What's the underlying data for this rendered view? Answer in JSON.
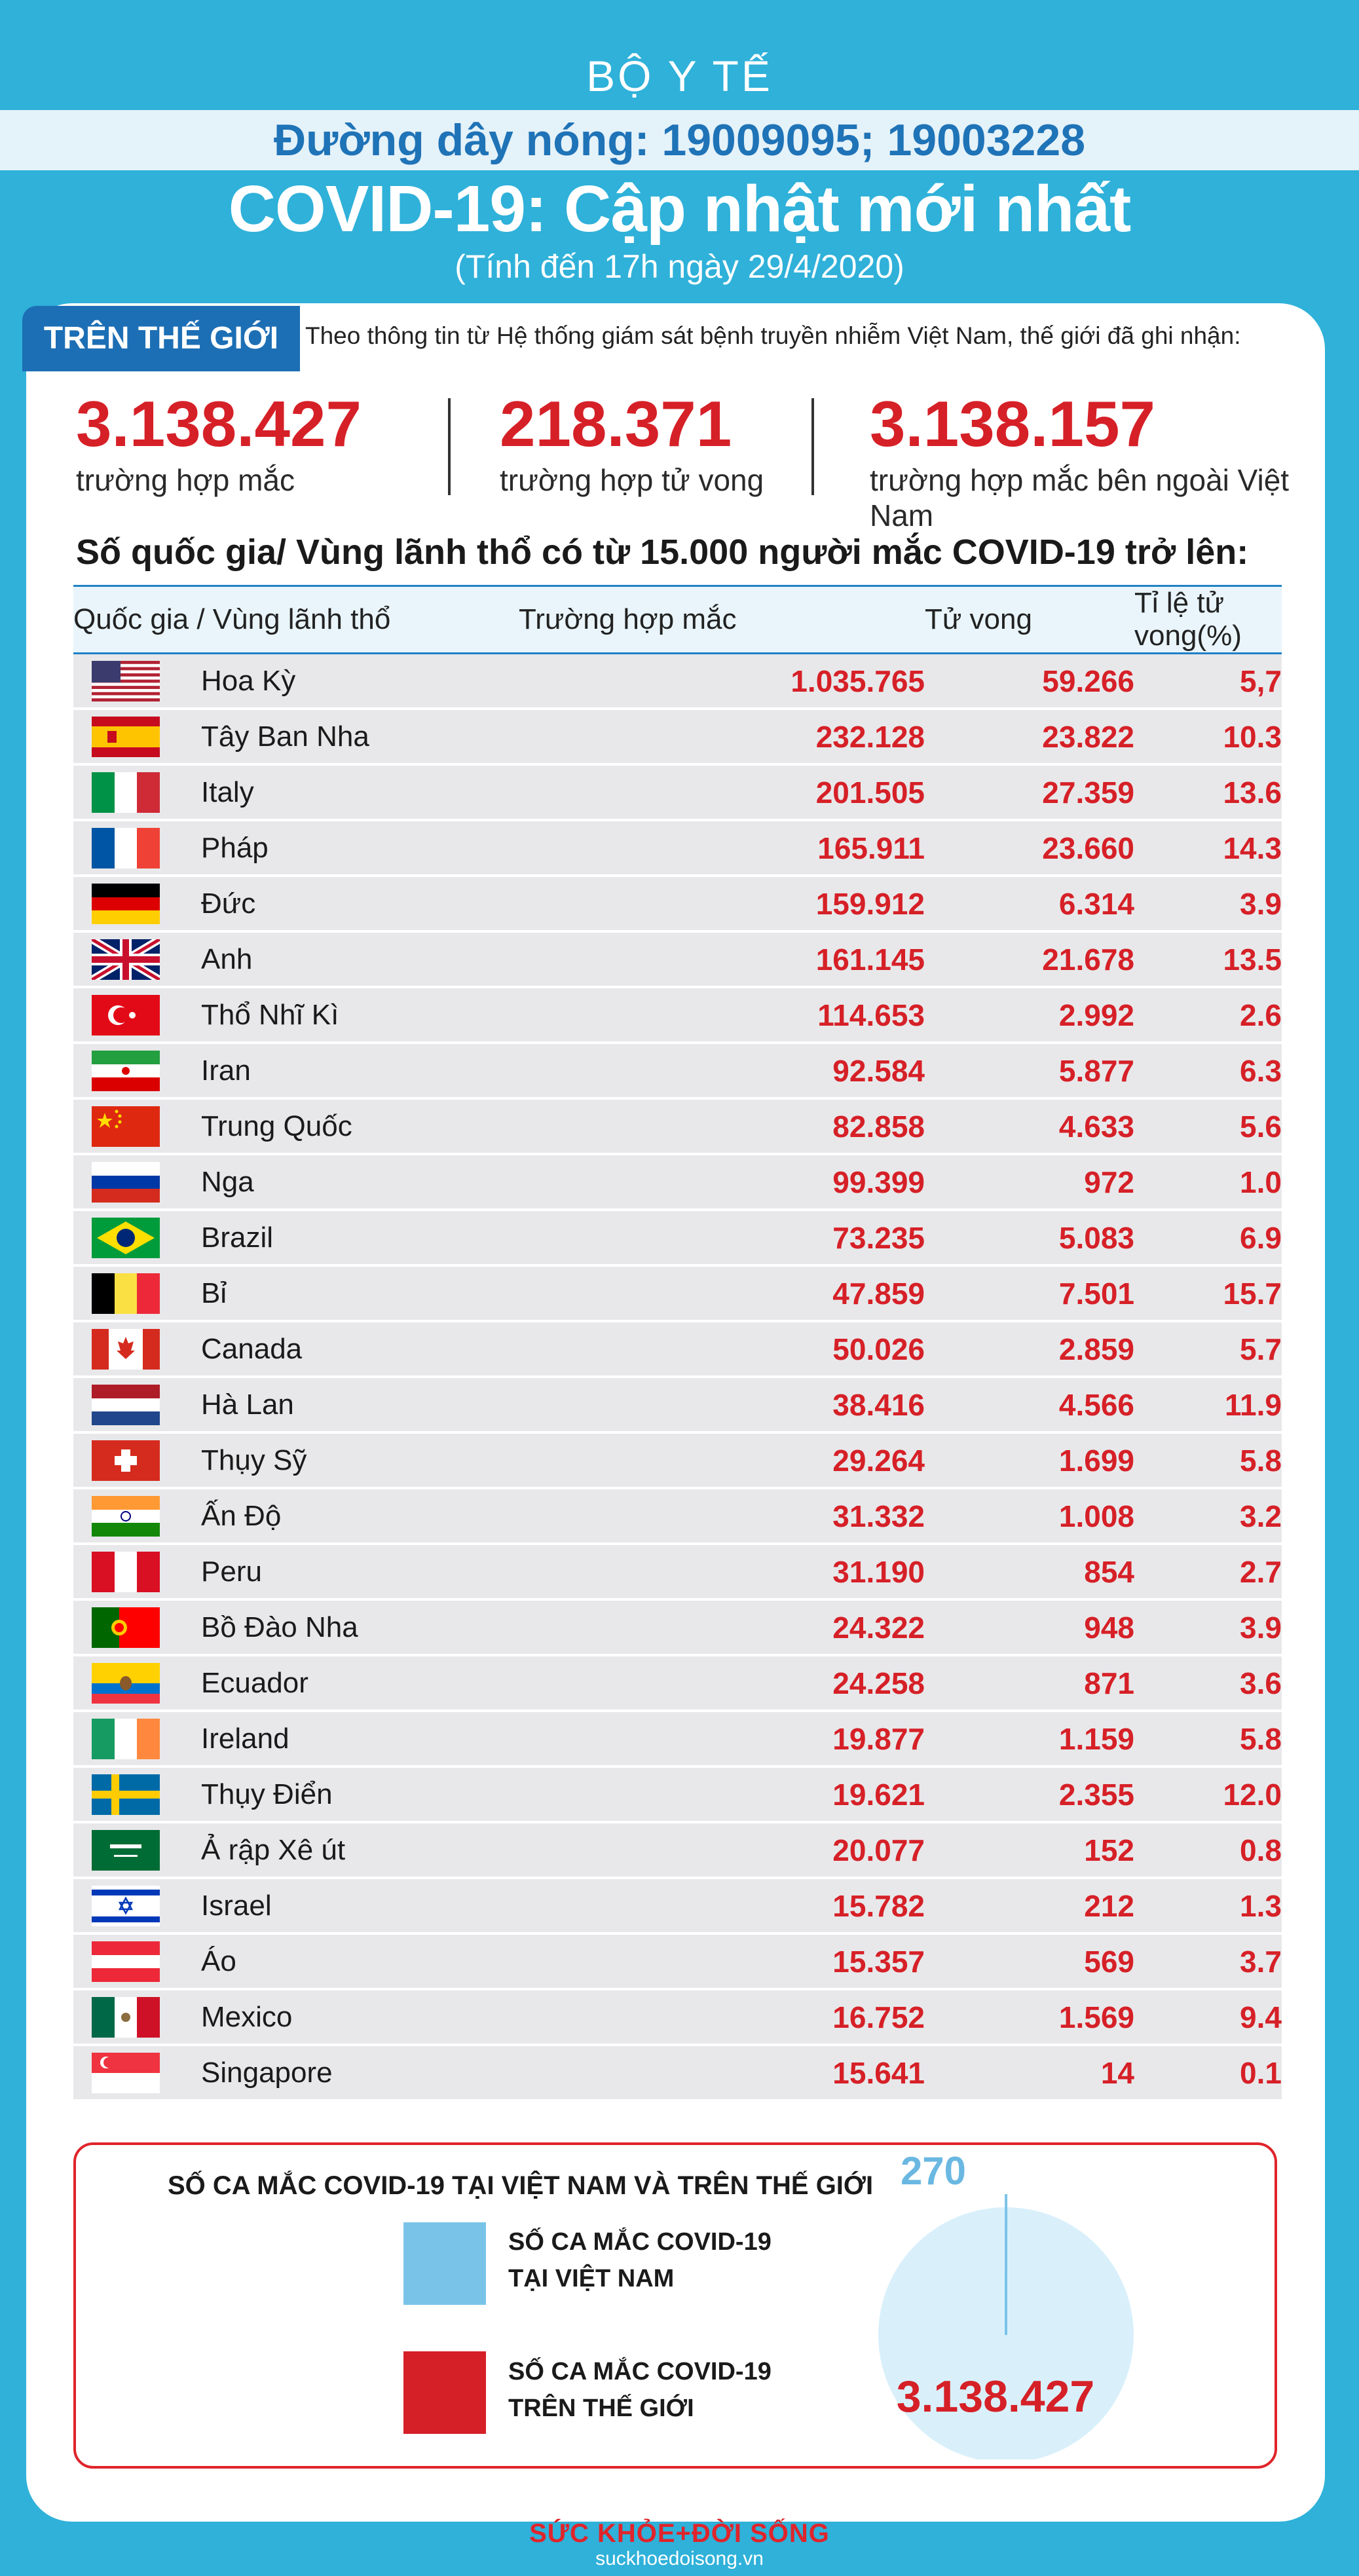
{
  "header": {
    "ministry": "BỘ Y TẾ",
    "hotline": "Đường dây nóng: 19009095; 19003228",
    "title": "COVID-19: Cập nhật mới nhất",
    "subtitle": "(Tính đến 17h ngày 29/4/2020)"
  },
  "world": {
    "tag": "TRÊN THẾ GIỚI",
    "intro": "Theo thông tin từ Hệ thống giám sát bệnh truyền nhiễm Việt Nam, thế giới đã ghi nhận:",
    "stats": [
      {
        "value": "3.138.427",
        "label": "trường hợp mắc"
      },
      {
        "value": "218.371",
        "label": "trường hợp tử vong"
      },
      {
        "value": "3.138.157",
        "label": "trường hợp  mắc bên ngoài Việt Nam"
      }
    ]
  },
  "table": {
    "title": "Số quốc gia/ Vùng lãnh thổ có từ 15.000 người  mắc COVID-19 trở lên:",
    "headers": {
      "country": "Quốc gia / Vùng lãnh thổ",
      "cases": "Trường hợp mắc",
      "deaths": "Tử vong",
      "rate": "Tỉ lệ tử vong(%)"
    },
    "rows": [
      {
        "flag": "usa-flag-icon",
        "name": "Hoa Kỳ",
        "cases": "1.035.765",
        "deaths": "59.266",
        "rate": "5,7"
      },
      {
        "flag": "spain-flag-icon",
        "name": "Tây Ban Nha",
        "cases": "232.128",
        "deaths": "23.822",
        "rate": "10.3"
      },
      {
        "flag": "italy-flag-icon",
        "name": "Italy",
        "cases": "201.505",
        "deaths": "27.359",
        "rate": "13.6"
      },
      {
        "flag": "france-flag-icon",
        "name": "Pháp",
        "cases": "165.911",
        "deaths": "23.660",
        "rate": "14.3"
      },
      {
        "flag": "germany-flag-icon",
        "name": "Đức",
        "cases": "159.912",
        "deaths": "6.314",
        "rate": "3.9"
      },
      {
        "flag": "uk-flag-icon",
        "name": "Anh",
        "cases": "161.145",
        "deaths": "21.678",
        "rate": "13.5"
      },
      {
        "flag": "turkey-flag-icon",
        "name": "Thổ Nhĩ Kì",
        "cases": "114.653",
        "deaths": "2.992",
        "rate": "2.6"
      },
      {
        "flag": "iran-flag-icon",
        "name": "Iran",
        "cases": "92.584",
        "deaths": "5.877",
        "rate": "6.3"
      },
      {
        "flag": "china-flag-icon",
        "name": "Trung Quốc",
        "cases": "82.858",
        "deaths": "4.633",
        "rate": "5.6"
      },
      {
        "flag": "russia-flag-icon",
        "name": "Nga",
        "cases": "99.399",
        "deaths": "972",
        "rate": "1.0"
      },
      {
        "flag": "brazil-flag-icon",
        "name": "Brazil",
        "cases": "73.235",
        "deaths": "5.083",
        "rate": "6.9"
      },
      {
        "flag": "belgium-flag-icon",
        "name": "Bỉ",
        "cases": "47.859",
        "deaths": "7.501",
        "rate": "15.7"
      },
      {
        "flag": "canada-flag-icon",
        "name": "Canada",
        "cases": "50.026",
        "deaths": "2.859",
        "rate": "5.7"
      },
      {
        "flag": "netherlands-flag-icon",
        "name": "Hà Lan",
        "cases": "38.416",
        "deaths": "4.566",
        "rate": "11.9"
      },
      {
        "flag": "switzerland-flag-icon",
        "name": "Thụy Sỹ",
        "cases": "29.264",
        "deaths": "1.699",
        "rate": "5.8"
      },
      {
        "flag": "india-flag-icon",
        "name": "Ấn Độ",
        "cases": "31.332",
        "deaths": "1.008",
        "rate": "3.2"
      },
      {
        "flag": "peru-flag-icon",
        "name": "Peru",
        "cases": "31.190",
        "deaths": "854",
        "rate": "2.7"
      },
      {
        "flag": "portugal-flag-icon",
        "name": "Bồ Đào Nha",
        "cases": "24.322",
        "deaths": "948",
        "rate": "3.9"
      },
      {
        "flag": "ecuador-flag-icon",
        "name": "Ecuador",
        "cases": "24.258",
        "deaths": "871",
        "rate": "3.6"
      },
      {
        "flag": "ireland-flag-icon",
        "name": "Ireland",
        "cases": "19.877",
        "deaths": "1.159",
        "rate": "5.8"
      },
      {
        "flag": "sweden-flag-icon",
        "name": "Thụy Điển",
        "cases": "19.621",
        "deaths": "2.355",
        "rate": "12.0"
      },
      {
        "flag": "saudi-arabia-flag-icon",
        "name": "Ả rập Xê út",
        "cases": "20.077",
        "deaths": "152",
        "rate": "0.8"
      },
      {
        "flag": "israel-flag-icon",
        "name": "Israel",
        "cases": "15.782",
        "deaths": "212",
        "rate": "1.3"
      },
      {
        "flag": "austria-flag-icon",
        "name": "Áo",
        "cases": "15.357",
        "deaths": "569",
        "rate": "3.7"
      },
      {
        "flag": "mexico-flag-icon",
        "name": "Mexico",
        "cases": "16.752",
        "deaths": "1.569",
        "rate": "9.4"
      },
      {
        "flag": "singapore-flag-icon",
        "name": "Singapore",
        "cases": "15.641",
        "deaths": "14",
        "rate": "0.1"
      }
    ]
  },
  "chart_data": {
    "type": "pie",
    "title": "SỐ CA MẮC COVID-19 TẠI VIỆT NAM VÀ TRÊN THẾ GIỚI",
    "series": [
      {
        "name": "SỐ CA MẮC COVID-19 TẠI VIỆT NAM",
        "value": 270,
        "label": "270",
        "color": "#7ac3e8"
      },
      {
        "name": "SỐ CA MẮC COVID-19 TRÊN THẾ GIỚI",
        "value": 3138427,
        "label": "3.138.427",
        "color": "#d62027"
      }
    ],
    "legend_placement": "left"
  },
  "footer": {
    "logo_text": "SỨC KHỎE+ĐỜI SỐNG",
    "url": "suckhoedoisong.vn"
  },
  "colors": {
    "background": "#2fb1d9",
    "accent_red": "#d62027",
    "header_blue": "#1d6fb5",
    "pie_fill": "#d9f0fb"
  }
}
